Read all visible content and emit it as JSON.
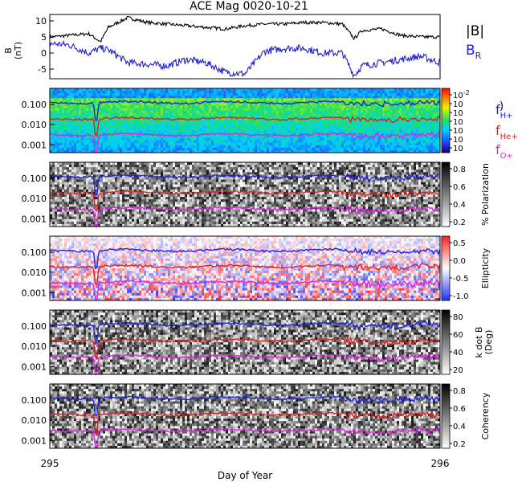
{
  "chart_data": [
    {
      "type": "line",
      "title": "ACE Mag 0020-10-21",
      "ylabel": [
        "B",
        "(nT)"
      ],
      "ylim": [
        -8,
        12
      ],
      "yticks": [
        -5,
        0,
        5,
        10
      ],
      "xlim": [
        295,
        296
      ],
      "legend": [
        {
          "label": "|B|",
          "color": "#000000"
        },
        {
          "label": "B",
          "sub": "R",
          "color": "#2020d0"
        }
      ],
      "series": [
        {
          "label": "|B|",
          "color": "#000000",
          "x": [
            295.0,
            295.05,
            295.1,
            295.13,
            295.15,
            295.2,
            295.25,
            295.3,
            295.35,
            295.4,
            295.45,
            295.5,
            295.55,
            295.6,
            295.65,
            295.7,
            295.75,
            295.78,
            295.8,
            295.85,
            295.9,
            295.95,
            296.0
          ],
          "y": [
            5,
            5.5,
            6,
            3.5,
            8,
            11,
            9.5,
            9,
            8.5,
            8,
            7.5,
            8.5,
            9,
            9,
            9.5,
            9.5,
            9,
            4.5,
            7,
            7.5,
            5.5,
            5,
            5
          ]
        },
        {
          "label": "B_R",
          "color": "#2020d0",
          "x": [
            295.0,
            295.05,
            295.1,
            295.13,
            295.15,
            295.2,
            295.25,
            295.3,
            295.35,
            295.4,
            295.45,
            295.5,
            295.55,
            295.6,
            295.65,
            295.7,
            295.75,
            295.78,
            295.8,
            295.85,
            295.9,
            295.95,
            296.0
          ],
          "y": [
            3,
            2.5,
            0,
            1.5,
            1,
            -3,
            -3.5,
            -4,
            -2,
            -3,
            -6,
            -6.5,
            0.5,
            1.5,
            1.5,
            0,
            0,
            -7,
            -4,
            -3,
            -2,
            -1,
            -3
          ]
        }
      ]
    },
    {
      "type": "heatmap",
      "yticks": [
        "0.100",
        "0.010",
        "0.001"
      ],
      "colorbar": {
        "ticks": [
          "10",
          "10",
          "10",
          "10",
          "10",
          "10",
          "10"
        ],
        "exponents": [
          "-2",
          "",
          "",
          "",
          "",
          "",
          ""
        ],
        "label": ")"
      },
      "colormap": "rainbow",
      "lines": [
        {
          "label": "f",
          "sub": "H+",
          "color": "#2020e0"
        },
        {
          "label": "f",
          "sub": "He+",
          "color": "#e02020"
        },
        {
          "label": "f",
          "sub": "O+",
          "color": "#e020e0"
        }
      ]
    },
    {
      "type": "heatmap",
      "yticks": [
        "0.100",
        "0.010",
        "0.001"
      ],
      "colorbar": {
        "ticks": [
          "0.8",
          "0.6",
          "0.4",
          "0.2"
        ],
        "label": "% Polarization"
      },
      "colormap": "gray"
    },
    {
      "type": "heatmap",
      "yticks": [
        "0.100",
        "0.010",
        "0.001"
      ],
      "colorbar": {
        "ticks": [
          "0.5",
          "0.0",
          "-0.5",
          "-1.0"
        ],
        "label": "Ellipticity"
      },
      "colormap": "bwr"
    },
    {
      "type": "heatmap",
      "yticks": [
        "0.100",
        "0.010",
        "0.001"
      ],
      "colorbar": {
        "ticks": [
          "80",
          "60",
          "40",
          "20"
        ],
        "label": [
          "k dot B",
          "(Deg)"
        ]
      },
      "colormap": "gray"
    },
    {
      "type": "heatmap",
      "yticks": [
        "0.100",
        "0.010",
        "0.001"
      ],
      "colorbar": {
        "ticks": [
          "0.8",
          "0.6",
          "0.4",
          "0.2"
        ],
        "label": "Coherency"
      },
      "colormap": "gray"
    }
  ],
  "x_axis": {
    "ticks": [
      "295",
      "296"
    ],
    "label": "Day of Year"
  }
}
